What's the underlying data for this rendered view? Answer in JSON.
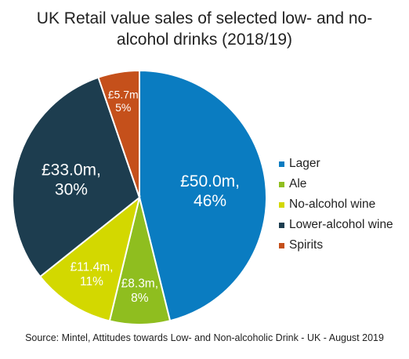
{
  "chart_data": {
    "type": "pie",
    "title_lines": [
      "UK Retail value sales of selected low- and no-",
      "alcohol drinks (2018/19)"
    ],
    "source": "Source: Mintel, Attitudes towards Low- and Non-alcoholic Drink - UK - August 2019",
    "legend_position": "right",
    "slices": [
      {
        "name": "Lager",
        "value": 50.0,
        "value_label": "£50.0m,",
        "pct_label": "46%",
        "color": "#0a7cc1"
      },
      {
        "name": "Ale",
        "value": 8.3,
        "value_label": "£8.3m,",
        "pct_label": "8%",
        "color": "#8fbe1f"
      },
      {
        "name": "No-alcohol wine",
        "value": 11.4,
        "value_label": "£11.4m,",
        "pct_label": "11%",
        "color": "#d3d800"
      },
      {
        "name": "Lower-alcohol wine",
        "value": 33.0,
        "value_label": "£33.0m,",
        "pct_label": "30%",
        "color": "#1d3d4f"
      },
      {
        "name": "Spirits",
        "value": 5.7,
        "value_label": "£5.7m",
        "pct_label": "5%",
        "color": "#c5501b"
      }
    ]
  }
}
